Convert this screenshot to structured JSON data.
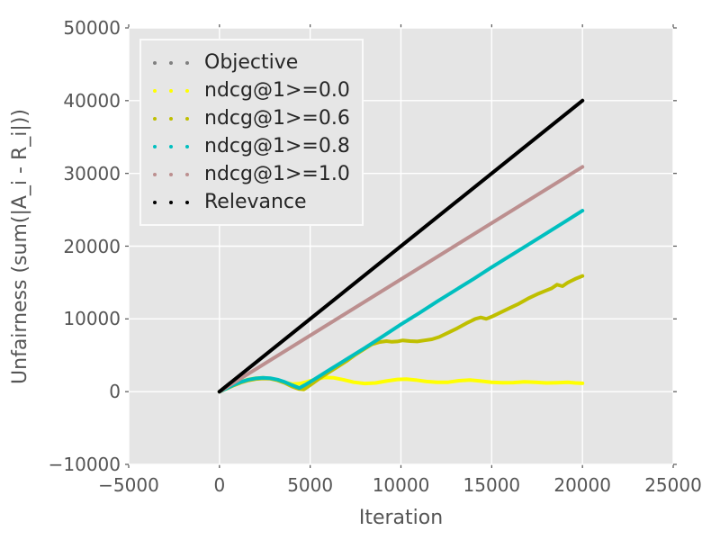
{
  "figure": {
    "background": "#ffffff",
    "plot_background": "#e5e5e5",
    "grid_color": "#ffffff",
    "tick_color": "#555555",
    "tick_label_color": "#555555",
    "axis_label_color": "#555555",
    "legend_text_color": "#262626",
    "legend_background": "#e6e6e6",
    "legend_border": "#fafafa"
  },
  "chart_data": {
    "type": "line",
    "title": "",
    "xlabel": "Iteration",
    "ylabel": "Unfairness (sum(|A_i - R_i|))",
    "xlim": [
      -5000,
      25000
    ],
    "ylim": [
      -10000,
      50000
    ],
    "xticks": [
      -5000,
      0,
      5000,
      10000,
      15000,
      20000,
      25000
    ],
    "xtick_labels": [
      "−5000",
      "0",
      "5000",
      "10000",
      "15000",
      "20000",
      "25000"
    ],
    "yticks": [
      -10000,
      0,
      10000,
      20000,
      30000,
      40000,
      50000
    ],
    "ytick_labels": [
      "−10000",
      "0",
      "10000",
      "20000",
      "30000",
      "40000",
      "50000"
    ],
    "grid": true,
    "legend_position": "upper left",
    "line_style": "dotted-dense",
    "line_width": 4,
    "series": [
      {
        "name": "Objective",
        "color": "#808080",
        "points": [
          [
            0,
            0
          ],
          [
            20000,
            40000
          ]
        ]
      },
      {
        "name": "ndcg@1>=0.0",
        "color": "#ffff00",
        "points": [
          [
            0,
            0
          ],
          [
            400,
            470
          ],
          [
            800,
            980
          ],
          [
            1200,
            1380
          ],
          [
            1600,
            1680
          ],
          [
            2000,
            1850
          ],
          [
            2400,
            1900
          ],
          [
            2800,
            1820
          ],
          [
            3200,
            1600
          ],
          [
            3600,
            1300
          ],
          [
            4000,
            1050
          ],
          [
            4400,
            1100
          ],
          [
            4800,
            1350
          ],
          [
            5300,
            1700
          ],
          [
            5800,
            1950
          ],
          [
            6300,
            1900
          ],
          [
            6800,
            1650
          ],
          [
            7400,
            1300
          ],
          [
            8000,
            1120
          ],
          [
            8600,
            1200
          ],
          [
            9200,
            1450
          ],
          [
            9800,
            1680
          ],
          [
            10300,
            1730
          ],
          [
            10800,
            1600
          ],
          [
            11400,
            1400
          ],
          [
            12000,
            1280
          ],
          [
            12600,
            1300
          ],
          [
            13200,
            1500
          ],
          [
            13800,
            1600
          ],
          [
            14400,
            1450
          ],
          [
            15000,
            1300
          ],
          [
            15600,
            1220
          ],
          [
            16200,
            1250
          ],
          [
            16800,
            1350
          ],
          [
            17400,
            1300
          ],
          [
            18000,
            1200
          ],
          [
            18600,
            1230
          ],
          [
            19200,
            1280
          ],
          [
            19600,
            1200
          ],
          [
            20000,
            1150
          ]
        ]
      },
      {
        "name": "ndcg@1>=0.6",
        "color": "#bfbf00",
        "points": [
          [
            0,
            0
          ],
          [
            400,
            420
          ],
          [
            800,
            880
          ],
          [
            1200,
            1260
          ],
          [
            1600,
            1550
          ],
          [
            2000,
            1740
          ],
          [
            2400,
            1820
          ],
          [
            2800,
            1780
          ],
          [
            3200,
            1560
          ],
          [
            3600,
            1200
          ],
          [
            4000,
            700
          ],
          [
            4400,
            350
          ],
          [
            4650,
            300
          ],
          [
            5000,
            900
          ],
          [
            5500,
            1800
          ],
          [
            6000,
            2600
          ],
          [
            6500,
            3400
          ],
          [
            7000,
            4200
          ],
          [
            7500,
            5100
          ],
          [
            8000,
            5900
          ],
          [
            8400,
            6500
          ],
          [
            8800,
            6800
          ],
          [
            9200,
            6950
          ],
          [
            9500,
            6850
          ],
          [
            9800,
            6900
          ],
          [
            10100,
            7050
          ],
          [
            10500,
            6950
          ],
          [
            10900,
            6900
          ],
          [
            11300,
            7050
          ],
          [
            11700,
            7200
          ],
          [
            12100,
            7500
          ],
          [
            12600,
            8100
          ],
          [
            13100,
            8700
          ],
          [
            13600,
            9400
          ],
          [
            14100,
            10000
          ],
          [
            14400,
            10200
          ],
          [
            14700,
            10000
          ],
          [
            15000,
            10300
          ],
          [
            15500,
            10900
          ],
          [
            16000,
            11500
          ],
          [
            16500,
            12100
          ],
          [
            17000,
            12800
          ],
          [
            17500,
            13400
          ],
          [
            18000,
            13900
          ],
          [
            18300,
            14200
          ],
          [
            18600,
            14700
          ],
          [
            18900,
            14500
          ],
          [
            19200,
            15000
          ],
          [
            19600,
            15500
          ],
          [
            20000,
            15900
          ]
        ]
      },
      {
        "name": "ndcg@1>=0.8",
        "color": "#00bfbf",
        "points": [
          [
            0,
            0
          ],
          [
            400,
            450
          ],
          [
            800,
            950
          ],
          [
            1200,
            1350
          ],
          [
            1600,
            1650
          ],
          [
            2000,
            1830
          ],
          [
            2400,
            1900
          ],
          [
            2800,
            1850
          ],
          [
            3200,
            1650
          ],
          [
            3600,
            1330
          ],
          [
            4000,
            900
          ],
          [
            4400,
            500
          ],
          [
            4700,
            900
          ],
          [
            5200,
            1650
          ],
          [
            6000,
            2900
          ],
          [
            7000,
            4450
          ],
          [
            8000,
            6000
          ],
          [
            9000,
            7600
          ],
          [
            10000,
            9250
          ],
          [
            11000,
            10800
          ],
          [
            12000,
            12400
          ],
          [
            13000,
            13950
          ],
          [
            14000,
            15500
          ],
          [
            15000,
            17100
          ],
          [
            16000,
            18650
          ],
          [
            17000,
            20200
          ],
          [
            18000,
            21750
          ],
          [
            19000,
            23300
          ],
          [
            20000,
            24870
          ]
        ]
      },
      {
        "name": "ndcg@1>=1.0",
        "color": "#bc8f8f",
        "points": [
          [
            0,
            0
          ],
          [
            20000,
            30900
          ]
        ]
      },
      {
        "name": "Relevance",
        "color": "#000000",
        "points": [
          [
            0,
            0
          ],
          [
            20000,
            40000
          ]
        ]
      }
    ]
  }
}
